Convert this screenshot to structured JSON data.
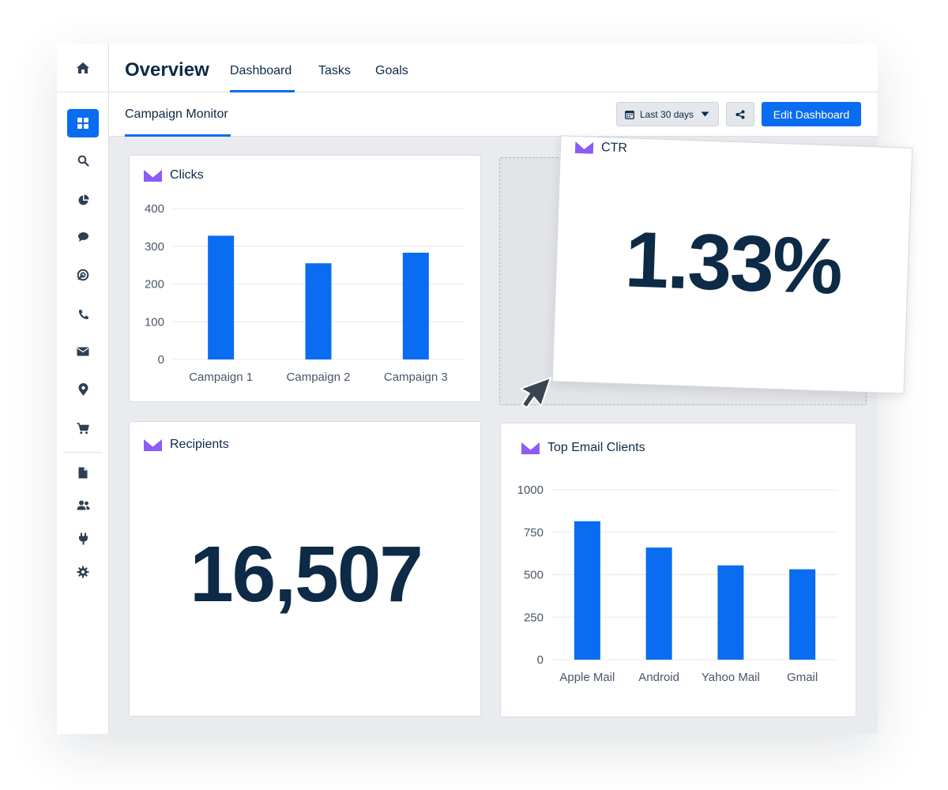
{
  "colors": {
    "accent": "#0a6cf0",
    "bar": "#0a6cf0",
    "text": "#0d2a47",
    "brand_icon": "#8b5cf6"
  },
  "sidebar": {
    "items": [
      {
        "name": "home-icon"
      },
      {
        "name": "dashboard-grid-icon"
      },
      {
        "name": "search-icon"
      },
      {
        "name": "pie-chart-icon"
      },
      {
        "name": "chat-icon"
      },
      {
        "name": "target-icon"
      },
      {
        "name": "phone-icon"
      },
      {
        "name": "mail-icon"
      },
      {
        "name": "location-pin-icon"
      },
      {
        "name": "cart-icon"
      },
      {
        "name": "document-icon"
      },
      {
        "name": "users-icon"
      },
      {
        "name": "plug-icon"
      },
      {
        "name": "gear-icon"
      }
    ]
  },
  "header": {
    "title": "Overview",
    "tabs": [
      {
        "label": "Dashboard",
        "active": true
      },
      {
        "label": "Tasks"
      },
      {
        "label": "Goals"
      }
    ]
  },
  "subheader": {
    "tab": "Campaign Monitor",
    "date_range": "Last 30 days",
    "edit_button": "Edit Dashboard"
  },
  "widgets": {
    "clicks": {
      "title": "Clicks"
    },
    "ctr": {
      "title": "CTR",
      "value": "1.33%"
    },
    "recipients": {
      "title": "Recipients",
      "value": "16,507"
    },
    "email_clients": {
      "title": "Top Email Clients"
    }
  },
  "chart_data": [
    {
      "type": "bar",
      "title": "Clicks",
      "categories": [
        "Campaign 1",
        "Campaign 2",
        "Campaign 3"
      ],
      "values": [
        328,
        255,
        283
      ],
      "yticks": [
        0,
        100,
        200,
        300,
        400
      ],
      "ylim": [
        0,
        400
      ],
      "grid": true
    },
    {
      "type": "bar",
      "title": "Top Email Clients",
      "categories": [
        "Apple Mail",
        "Android",
        "Yahoo Mail",
        "Gmail"
      ],
      "values": [
        815,
        660,
        555,
        532
      ],
      "yticks": [
        0,
        250,
        500,
        750,
        1000
      ],
      "ylim": [
        0,
        1000
      ],
      "grid": true
    }
  ]
}
